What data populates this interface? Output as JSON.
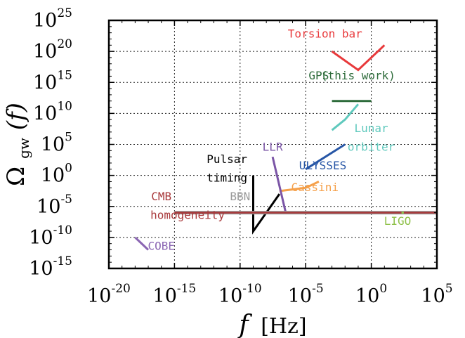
{
  "chart_data": {
    "type": "line",
    "xlabel": {
      "symbol": "f",
      "unit": "[Hz]"
    },
    "ylabel": {
      "symbol": "Ω",
      "subscript": "gw",
      "arg": "(f)"
    },
    "xscale": "log",
    "yscale": "log",
    "xlim": [
      1e-20,
      100000.0
    ],
    "ylim": [
      1e-15,
      1e+25
    ],
    "grid": true,
    "x_ticks": [
      {
        "base": "10",
        "exp": "-20",
        "value": 1e-20
      },
      {
        "base": "10",
        "exp": "-15",
        "value": 1e-15
      },
      {
        "base": "10",
        "exp": "-10",
        "value": 1e-10
      },
      {
        "base": "10",
        "exp": "-5",
        "value": 1e-05
      },
      {
        "base": "10",
        "exp": "0",
        "value": 1
      },
      {
        "base": "10",
        "exp": "5",
        "value": 100000.0
      }
    ],
    "y_ticks": [
      {
        "base": "10",
        "exp": "-15",
        "value": 1e-15
      },
      {
        "base": "10",
        "exp": "-10",
        "value": 1e-10
      },
      {
        "base": "10",
        "exp": "-5",
        "value": 1e-05
      },
      {
        "base": "10",
        "exp": "0",
        "value": 1
      },
      {
        "base": "10",
        "exp": "5",
        "value": 100000.0
      },
      {
        "base": "10",
        "exp": "10",
        "value": 10000000000.0
      },
      {
        "base": "10",
        "exp": "15",
        "value": 1000000000000000.0
      },
      {
        "base": "10",
        "exp": "20",
        "value": 1e+20
      },
      {
        "base": "10",
        "exp": "25",
        "value": 1e+25
      }
    ],
    "series": [
      {
        "name": "Torsion bar",
        "color": "#e8393b",
        "points": [
          [
            0.001,
            1e+20
          ],
          [
            0.1,
            1e+17
          ],
          [
            10.0,
            1e+21
          ]
        ],
        "labels": [
          {
            "text": "Torsion bar",
            "at": [
              0.0003,
              1.6e+22
            ],
            "anchor": "middle"
          }
        ]
      },
      {
        "name": "GPS (this work)",
        "color": "#2d6b3a",
        "points": [
          [
            0.001,
            1000000000000.0
          ],
          [
            1.0,
            1000000000000.0
          ]
        ],
        "labels": [
          {
            "text": "GPS",
            "at": [
              0.0001,
              3000000000000000.0
            ],
            "anchor": "middle"
          },
          {
            "text": "(this work)",
            "at": [
              0.1,
              3000000000000000.0
            ],
            "anchor": "middle",
            "small": true
          }
        ]
      },
      {
        "name": "Lunar orbiter",
        "color": "#5fc9bd",
        "points": [
          [
            0.001,
            20000000.0
          ],
          [
            0.01,
            1000000000.0
          ],
          [
            0.1,
            300000000000.0
          ]
        ],
        "labels": [
          {
            "text": "Lunar",
            "at": [
              1.0,
              10000000.0
            ],
            "anchor": "middle"
          },
          {
            "text": "orbiter",
            "at": [
              1.0,
              10000.0
            ],
            "anchor": "middle"
          }
        ]
      },
      {
        "name": "ULYSSES",
        "color": "#2756a6",
        "points": [
          [
            1e-05,
            10.0
          ],
          [
            0.01,
            100000.0
          ]
        ],
        "labels": [
          {
            "text": "ULYSSES",
            "at": [
              0.0002,
              10.0
            ],
            "anchor": "middle"
          }
        ]
      },
      {
        "name": "Cassini",
        "color": "#f5a04a",
        "points": [
          [
            1e-07,
            0.003
          ],
          [
            1e-05,
            0.01
          ],
          [
            0.0001,
            0.1
          ]
        ],
        "labels": [
          {
            "text": "Cassini",
            "at": [
              5e-05,
              0.003
            ],
            "anchor": "middle"
          }
        ]
      },
      {
        "name": "LLR",
        "color": "#7b55a6",
        "points": [
          [
            3e-08,
            1000.0
          ],
          [
            3e-07,
            1e-06
          ]
        ],
        "labels": [
          {
            "text": "LLR",
            "at": [
              3e-08,
              10000.0
            ],
            "anchor": "middle"
          }
        ]
      },
      {
        "name": "Pulsar timing",
        "color": "#000000",
        "points": [
          [
            1e-09,
            1.0
          ],
          [
            1e-09,
            1e-09
          ],
          [
            1e-07,
            0.001
          ]
        ],
        "labels": [
          {
            "text": "Pulsar",
            "at": [
              1e-11,
              100.0
            ],
            "anchor": "middle"
          },
          {
            "text": "timing",
            "at": [
              1e-11,
              0.1
            ],
            "anchor": "middle"
          }
        ]
      },
      {
        "name": "BBN",
        "color": "#9a9a9a",
        "points": [
          [
            1e-15,
            1e-06
          ],
          [
            100000.0,
            1e-06
          ]
        ],
        "labels": [
          {
            "text": "BBN",
            "at": [
              1e-10,
              0.0001
            ],
            "anchor": "middle"
          }
        ]
      },
      {
        "name": "CMB homogeneity",
        "color": "#a8383a",
        "points": [
          [
            1e-15,
            1e-06
          ],
          [
            100000.0,
            1e-06
          ]
        ],
        "labels": [
          {
            "text": "CMB",
            "at": [
              1e-16,
              0.0001
            ],
            "anchor": "middle"
          },
          {
            "text": "homogeneity",
            "at": [
              1e-14,
              1e-07
            ],
            "anchor": "middle"
          }
        ]
      },
      {
        "name": "LIGO",
        "color": "#8fc14a",
        "points": [
          [
            200.0,
            1e-06
          ],
          [
            300.0,
            1e-06
          ]
        ],
        "labels": [
          {
            "text": "LIGO",
            "at": [
              100.0,
              1e-08
            ],
            "anchor": "middle"
          }
        ]
      },
      {
        "name": "COBE",
        "color": "#8b66b3",
        "points": [
          [
            1e-18,
            1e-10
          ],
          [
            1e-17,
            1e-12
          ]
        ],
        "labels": [
          {
            "text": "COBE",
            "at": [
              1e-16,
              1e-12
            ],
            "anchor": "middle"
          }
        ]
      }
    ]
  }
}
